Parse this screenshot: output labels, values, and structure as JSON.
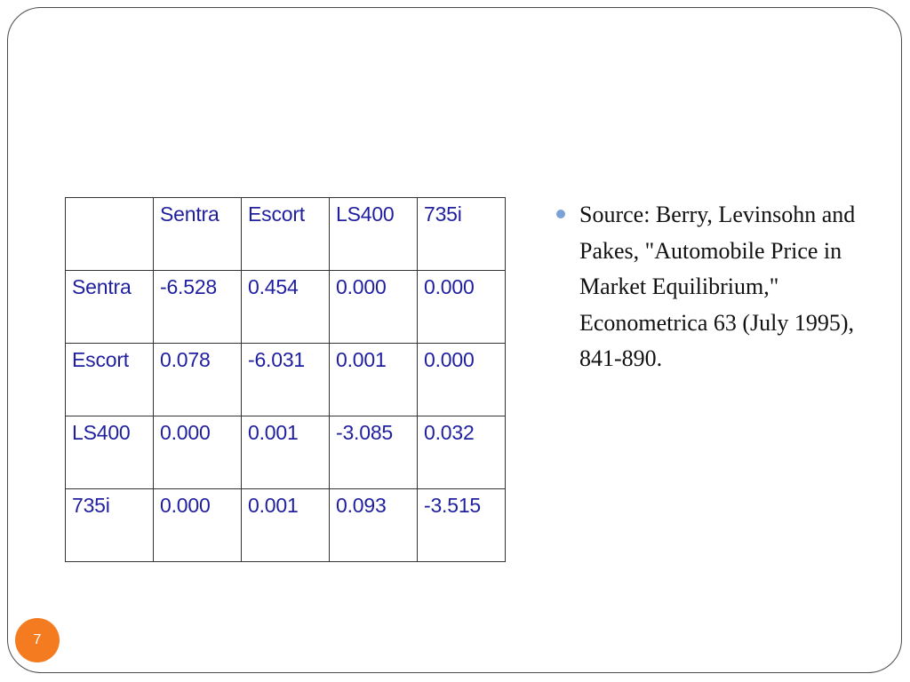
{
  "table": {
    "header": [
      "",
      "Sentra",
      "Escort",
      "LS400",
      "735i"
    ],
    "rows": [
      [
        "Sentra",
        "-6.528",
        "0.454",
        "0.000",
        "0.000"
      ],
      [
        "Escort",
        "0.078",
        "-6.031",
        "0.001",
        "0.000"
      ],
      [
        "LS400",
        "0.000",
        "0.001",
        "-3.085",
        "0.032"
      ],
      [
        "735i",
        "0.000",
        "0.001",
        "0.093",
        "-3.515"
      ]
    ]
  },
  "source": {
    "text": "Source:  Berry, Levinsohn and Pakes, \"Automobile Price in Market Equilibrium,\" Econometrica 63 (July 1995), 841-890."
  },
  "page_number": "7",
  "colors": {
    "table_text": "#1f1fa0",
    "bullet": "#7aa2d6",
    "page_badge": "#f47b20"
  }
}
